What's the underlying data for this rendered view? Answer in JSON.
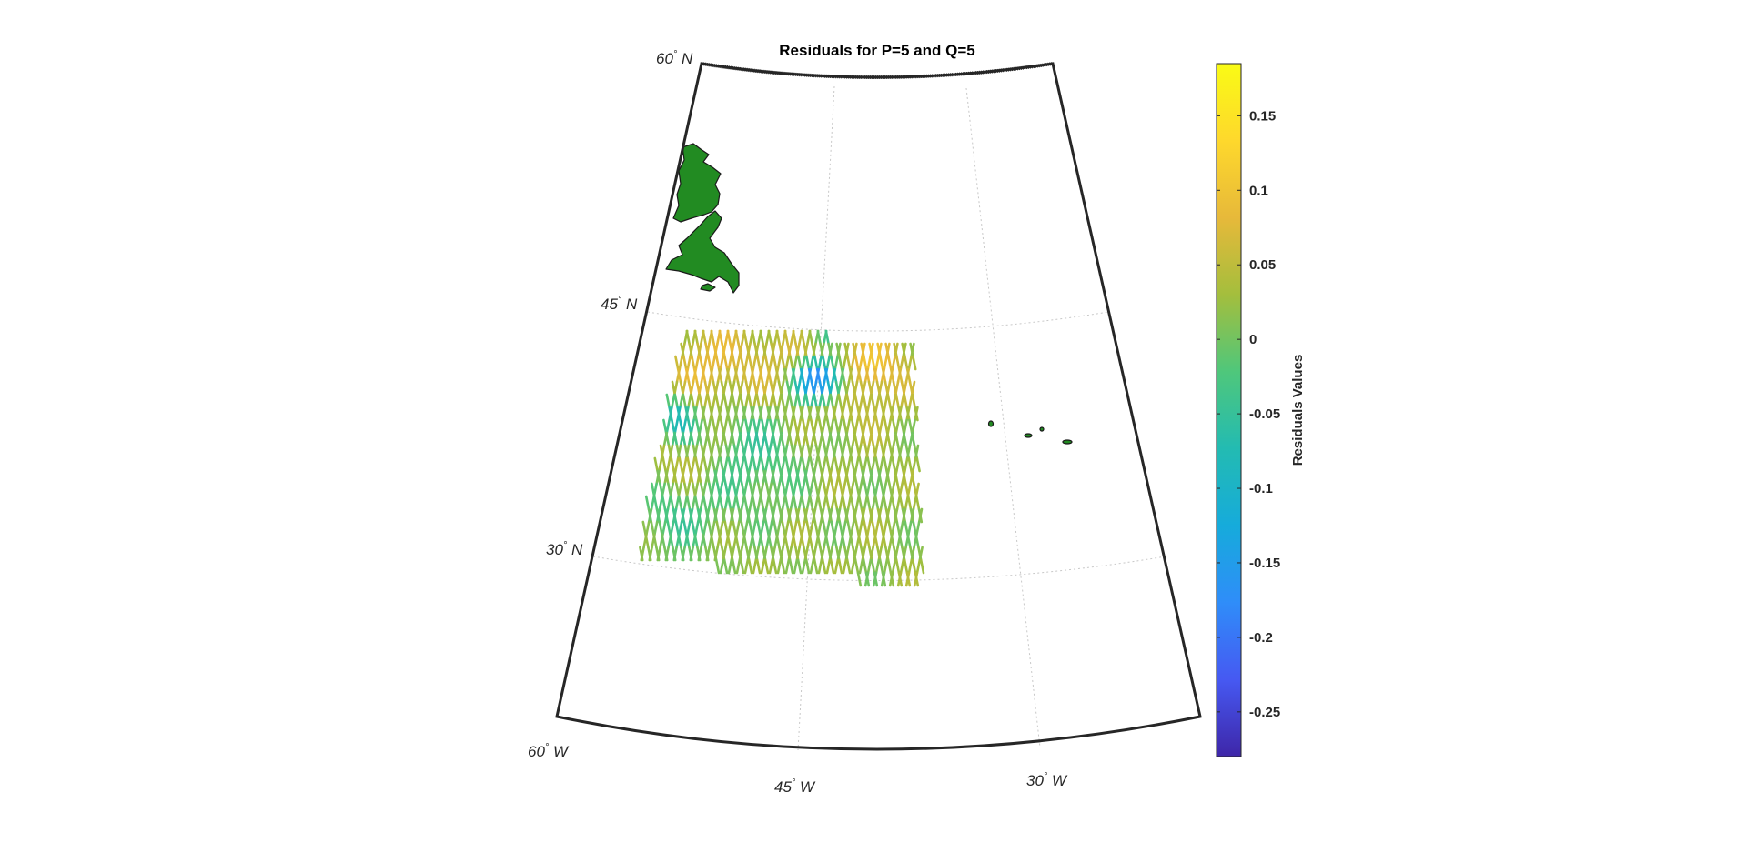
{
  "title": "Residuals for P=5 and Q=5",
  "lat_labels": [
    {
      "deg": "60",
      "hemi": " N"
    },
    {
      "deg": "45",
      "hemi": " N"
    },
    {
      "deg": "30",
      "hemi": " N"
    }
  ],
  "lon_labels": [
    {
      "deg": "60",
      "hemi": " W"
    },
    {
      "deg": "45",
      "hemi": " W"
    },
    {
      "deg": "30",
      "hemi": " W"
    }
  ],
  "colorbar": {
    "label": "Residuals Values",
    "min": -0.28,
    "max": 0.185,
    "ticks": [
      "0.15",
      "0.1",
      "0.05",
      "0",
      "-0.05",
      "-0.1",
      "-0.15",
      "-0.2",
      "-0.25"
    ],
    "tick_values": [
      0.15,
      0.1,
      0.05,
      0,
      -0.05,
      -0.1,
      -0.15,
      -0.2,
      -0.25
    ],
    "colormap": "parula",
    "colormap_stops": [
      "#3e26a8",
      "#4659f2",
      "#2f8df9",
      "#16abdb",
      "#23bbb2",
      "#4fc77b",
      "#a4be3d",
      "#e7b93a",
      "#fed82c",
      "#f9fb15"
    ]
  },
  "land_color": "#228b22",
  "grid": "on"
}
